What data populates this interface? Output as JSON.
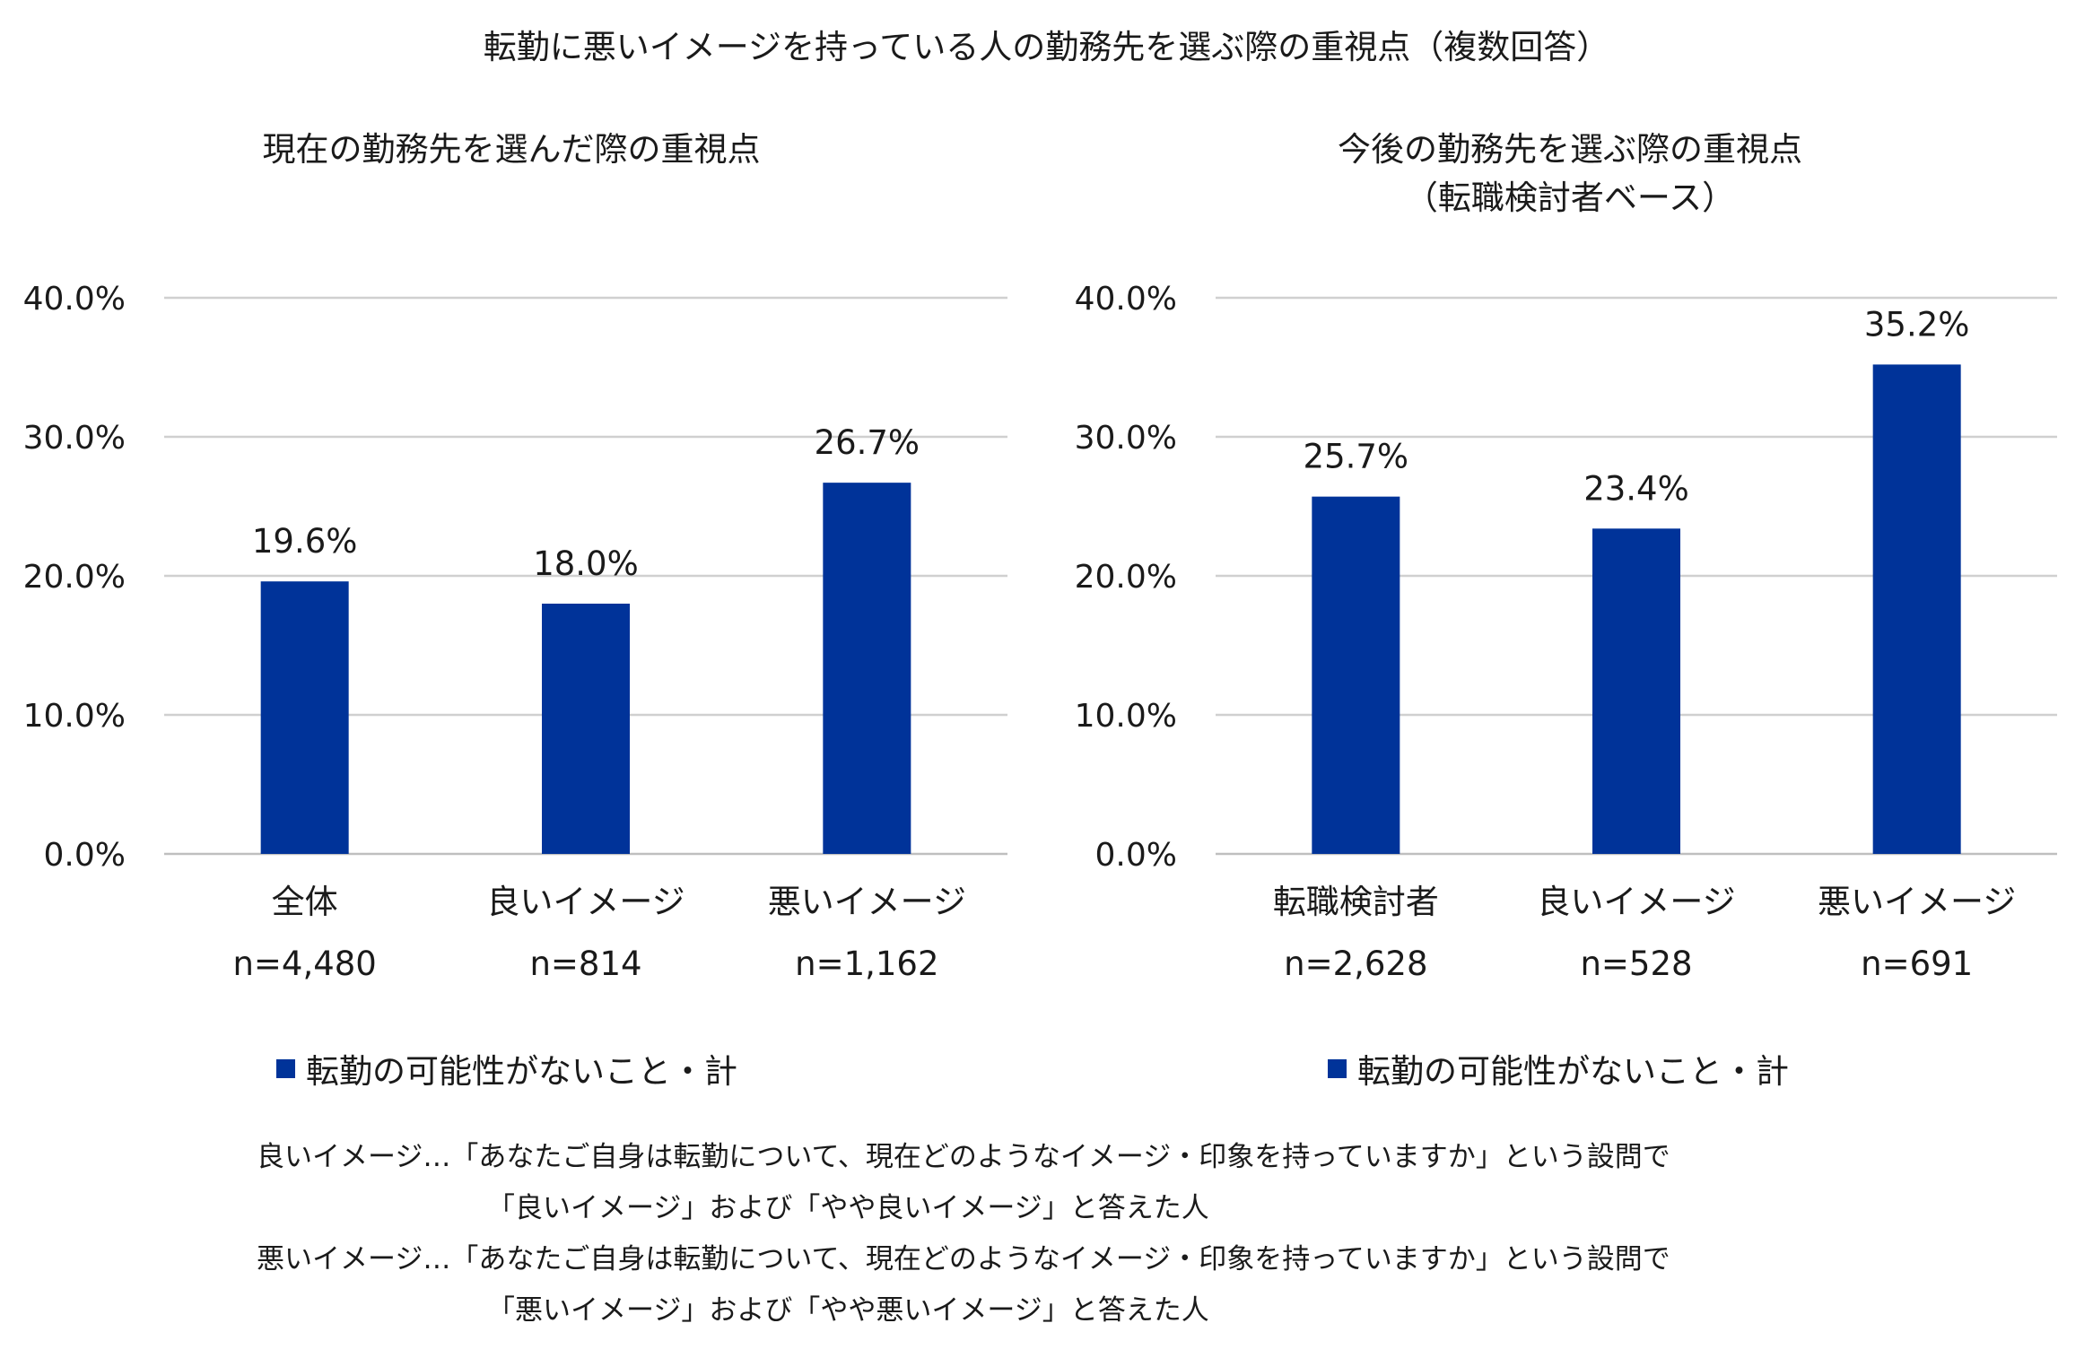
{
  "title": "転勤に悪いイメージを持っている人の勤務先を選ぶ際の重視点（複数回答）",
  "colors": {
    "bar": "#003399",
    "grid": "#d0d0d0",
    "axis": "#bfbfbf"
  },
  "chart_data": [
    {
      "type": "bar",
      "title": "現在の勤務先を選んだ際の重視点",
      "subtitle": "",
      "categories": [
        "全体",
        "良いイメージ",
        "悪いイメージ"
      ],
      "sample_sizes": [
        "n=4,480",
        "n=814",
        "n=1,162"
      ],
      "series": [
        {
          "name": "転勤の可能性がないこと・計",
          "values": [
            19.6,
            18.0,
            26.7
          ]
        }
      ],
      "value_labels": [
        "19.6%",
        "18.0%",
        "26.7%"
      ],
      "ylim": [
        0,
        40
      ],
      "yticks": [
        "0.0%",
        "10.0%",
        "20.0%",
        "30.0%",
        "40.0%"
      ],
      "grid": true,
      "legend": "転勤の可能性がないこと・計",
      "legend_position": "bottom"
    },
    {
      "type": "bar",
      "title": "今後の勤務先を選ぶ際の重視点",
      "subtitle": "（転職検討者ベース）",
      "categories": [
        "転職検討者",
        "良いイメージ",
        "悪いイメージ"
      ],
      "sample_sizes": [
        "n=2,628",
        "n=528",
        "n=691"
      ],
      "series": [
        {
          "name": "転勤の可能性がないこと・計",
          "values": [
            25.7,
            23.4,
            35.2
          ]
        }
      ],
      "value_labels": [
        "25.7%",
        "23.4%",
        "35.2%"
      ],
      "ylim": [
        0,
        40
      ],
      "yticks": [
        "0.0%",
        "10.0%",
        "20.0%",
        "30.0%",
        "40.0%"
      ],
      "grid": true,
      "legend": "転勤の可能性がないこと・計",
      "legend_position": "bottom"
    }
  ],
  "notes": [
    {
      "label": "良いイメージ…",
      "text": "「あなたご自身は転勤について、現在どのようなイメージ・印象を持っていますか」という設問で"
    },
    {
      "label": "",
      "text": "「良いイメージ」および「やや良いイメージ」と答えた人"
    },
    {
      "label": "悪いイメージ…",
      "text": "「あなたご自身は転勤について、現在どのようなイメージ・印象を持っていますか」という設問で"
    },
    {
      "label": "",
      "text": "「悪いイメージ」および「やや悪いイメージ」と答えた人"
    }
  ]
}
